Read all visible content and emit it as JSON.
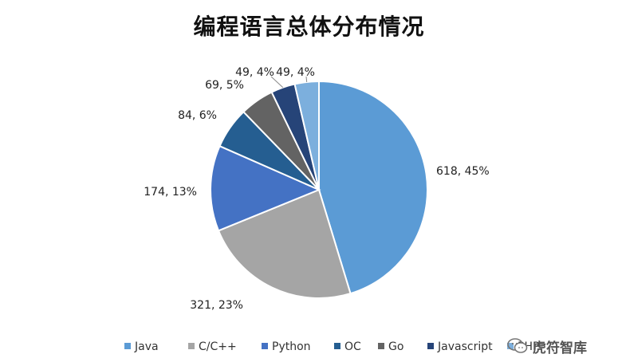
{
  "chart_data": {
    "type": "pie",
    "title": "编程语言总体分布情况",
    "categories": [
      "Java",
      "C/C++",
      "Python",
      "OC",
      "Go",
      "Javascript",
      "PHP"
    ],
    "values": [
      618,
      321,
      174,
      84,
      69,
      49,
      49
    ],
    "labels": [
      "618, 45%",
      "321, 23%",
      "174, 13%",
      "84, 6%",
      "69, 5%",
      "49, 4%",
      "49, 4%"
    ],
    "colors": [
      "#5b9bd5",
      "#a5a5a5",
      "#4472c4",
      "#255e91",
      "#636363",
      "#264478",
      "#7cafdd"
    ],
    "legend": "bottom"
  },
  "watermark": {
    "icon": "wechat-icon",
    "text": "虎符智库"
  }
}
